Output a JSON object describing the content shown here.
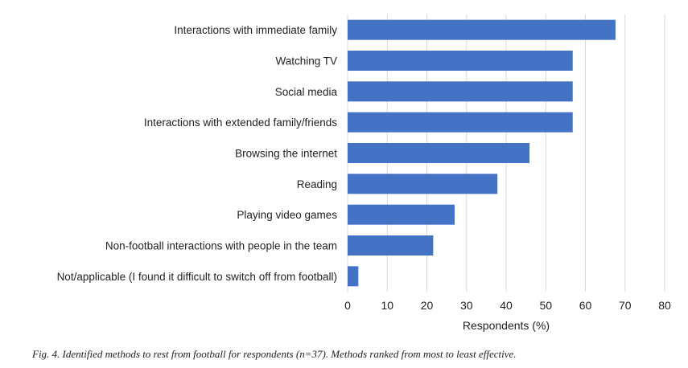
{
  "chart_data": {
    "type": "bar",
    "orientation": "horizontal",
    "categories": [
      "Interactions with immediate family",
      "Watching TV",
      "Social media",
      "Interactions with extended family/friends",
      "Browsing the internet",
      "Reading",
      "Playing video games",
      "Non-football interactions with people in the team",
      "Not/applicable (I found it difficult to switch off from football)"
    ],
    "values": [
      67.6,
      56.8,
      56.8,
      56.8,
      45.9,
      37.8,
      27.0,
      21.6,
      2.7
    ],
    "xlabel": "Respondents (%)",
    "ylabel": "",
    "xlim": [
      0,
      80
    ],
    "xticks": [
      "0",
      "10",
      "20",
      "30",
      "40",
      "50",
      "60",
      "70",
      "80"
    ],
    "grid": true,
    "bar_color": "#4472c4",
    "grid_color": "#d9d9d9"
  },
  "caption": "Fig. 4. Identified methods to rest from football for respondents (n=37). Methods ranked from most to least effective."
}
